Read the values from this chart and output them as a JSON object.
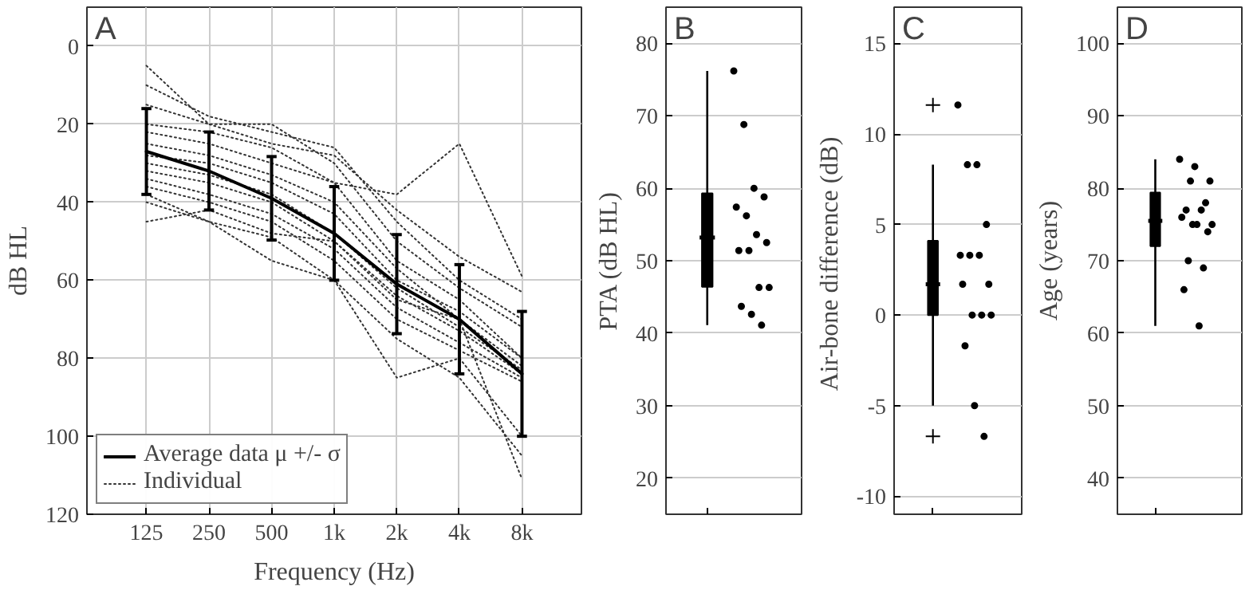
{
  "chart_data": [
    {
      "type": "line",
      "title": "A",
      "xlabel": "Frequency (Hz)",
      "ylabel": "dB HL",
      "categories": [
        "125",
        "250",
        "500",
        "1k",
        "2k",
        "4k",
        "8k"
      ],
      "ylim": [
        120,
        -10
      ],
      "yticks": [
        0,
        20,
        40,
        60,
        80,
        100,
        120
      ],
      "grid": true,
      "legend": "bottom left",
      "series": [
        {
          "name": "Average data μ +/- σ",
          "color": "#000000",
          "line_style": "solid",
          "values": [
            27,
            32,
            39,
            48,
            61,
            70,
            84
          ],
          "errors": [
            11,
            10,
            10.7,
            12,
            12.7,
            14,
            16
          ]
        },
        {
          "name": "Individual",
          "color": "#333333",
          "line_style": "dotted",
          "values": [
            5,
            20,
            25,
            28,
            42,
            54,
            63
          ]
        },
        {
          "color": "#333333",
          "line_style": "dotted",
          "values": [
            10,
            18,
            22,
            26,
            45,
            60,
            70
          ]
        },
        {
          "color": "#333333",
          "line_style": "dotted",
          "values": [
            15,
            20,
            20,
            30,
            50,
            62,
            72
          ]
        },
        {
          "color": "#333333",
          "line_style": "dotted",
          "values": [
            20,
            22,
            26,
            35,
            38,
            25,
            59
          ]
        },
        {
          "color": "#333333",
          "line_style": "dotted",
          "values": [
            22,
            25,
            30,
            35,
            55,
            65,
            80
          ]
        },
        {
          "color": "#333333",
          "line_style": "dotted",
          "values": [
            25,
            28,
            33,
            40,
            57,
            70,
            82
          ]
        },
        {
          "color": "#333333",
          "line_style": "dotted",
          "values": [
            28,
            30,
            35,
            43,
            60,
            68,
            80
          ]
        },
        {
          "color": "#333333",
          "line_style": "dotted",
          "values": [
            30,
            33,
            38,
            48,
            62,
            72,
            83
          ]
        },
        {
          "color": "#333333",
          "line_style": "dotted",
          "values": [
            32,
            35,
            40,
            50,
            64,
            73,
            84
          ]
        },
        {
          "color": "#333333",
          "line_style": "dotted",
          "values": [
            34,
            38,
            43,
            52,
            67,
            76,
            85
          ]
        },
        {
          "color": "#333333",
          "line_style": "dotted",
          "values": [
            36,
            40,
            45,
            55,
            70,
            78,
            86
          ]
        },
        {
          "color": "#333333",
          "line_style": "dotted",
          "values": [
            40,
            45,
            49,
            60,
            85,
            80,
            100
          ]
        },
        {
          "color": "#333333",
          "line_style": "dotted",
          "values": [
            45,
            42,
            48,
            50,
            65,
            70,
            111
          ]
        },
        {
          "color": "#333333",
          "line_style": "dotted",
          "values": [
            38,
            45,
            55,
            60,
            75,
            85,
            105
          ]
        }
      ]
    },
    {
      "type": "box",
      "title": "B",
      "ylabel": "PTA (dB HL)",
      "categories": [
        null
      ],
      "ylim": [
        15,
        85
      ],
      "yticks": [
        20,
        30,
        40,
        50,
        60,
        70,
        80
      ],
      "grid": "y",
      "tick_labels": "y",
      "marker": "circle",
      "color": "#000000",
      "boxes": [
        {
          "low": 41.1,
          "q1": 46.4,
          "median": 53.2,
          "q3": 59.3,
          "high": 76.2
        }
      ],
      "series": [
        {
          "type": "scatter",
          "color": "#000000",
          "x": [
            null,
            null,
            null,
            null,
            null,
            null,
            null,
            null,
            null,
            null,
            null,
            null,
            null,
            null,
            null
          ],
          "values": [
            76.2,
            68.8,
            60,
            58.8,
            57.4,
            56.2,
            53.6,
            52.5,
            51.4,
            51.4,
            46.3,
            46.3,
            43.7,
            42.6,
            41.1
          ]
        }
      ]
    },
    {
      "type": "box",
      "title": "C",
      "ylabel": "Air-bone difference  (dB)",
      "categories": [
        null
      ],
      "ylim": [
        -11,
        17
      ],
      "yticks": [
        -10,
        -5,
        0,
        5,
        10,
        15
      ],
      "grid": "y",
      "tick_labels": "y",
      "marker": "circle",
      "color": "#000000",
      "boxes": [
        {
          "low": -5,
          "q1": 0,
          "median": 1.7,
          "q3": 4.1,
          "high": 8.3,
          "outliers": [
            11.6,
            -6.7
          ]
        }
      ],
      "series": [
        {
          "type": "scatter",
          "color": "#000000",
          "x": [
            null,
            null,
            null,
            null,
            null,
            null,
            null,
            null,
            null,
            null,
            null,
            null,
            null,
            null,
            null
          ],
          "values": [
            11.6,
            8.3,
            8.3,
            5,
            3.3,
            3.3,
            3.3,
            1.7,
            1.7,
            0,
            0,
            0,
            -1.7,
            -5,
            -6.7
          ]
        }
      ]
    },
    {
      "type": "box",
      "title": "D",
      "ylabel": "Age (years)",
      "categories": [
        null
      ],
      "ylim": [
        35,
        105
      ],
      "yticks": [
        40,
        50,
        60,
        70,
        80,
        90,
        100
      ],
      "grid": "y",
      "tick_labels": "y",
      "marker": "circle",
      "color": "#000000",
      "boxes": [
        {
          "low": 61,
          "q1": 72,
          "median": 75.5,
          "q3": 79.4,
          "high": 84
        }
      ],
      "series": [
        {
          "type": "scatter",
          "color": "#000000",
          "x": [
            null,
            null,
            null,
            null,
            null,
            null,
            null,
            null,
            null,
            null,
            null,
            null,
            null,
            null,
            null,
            null
          ],
          "values": [
            84,
            83,
            81,
            81,
            78,
            77,
            77,
            76,
            75,
            75,
            75,
            74,
            70,
            69,
            66,
            61
          ]
        }
      ]
    }
  ]
}
